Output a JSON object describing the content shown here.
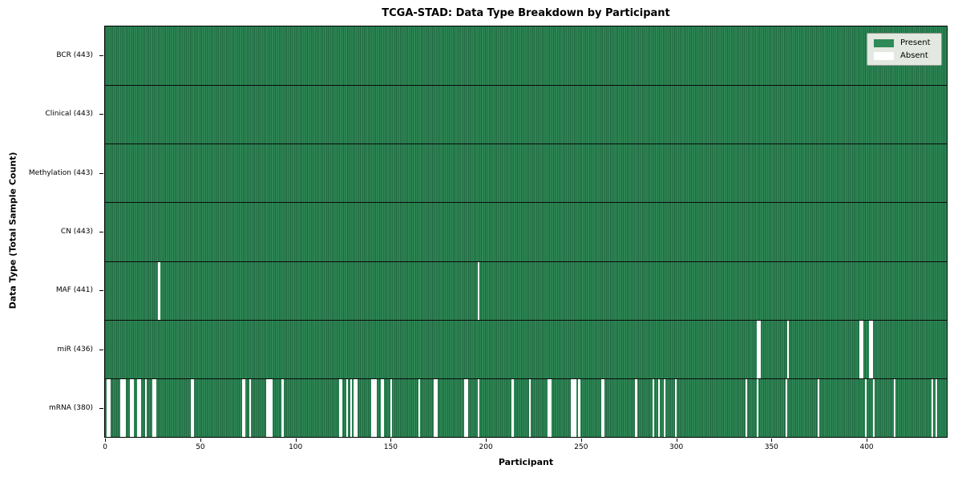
{
  "title": "TCGA-STAD: Data Type Breakdown by Participant",
  "legend": {
    "present_label": "Present",
    "absent_label": "Absent"
  },
  "colors": {
    "present": "#2e8b57",
    "absent": "#ffffff",
    "bar_edge": "#153c28",
    "row_divider": "#0a0a0a",
    "legend_bg": "#e3e8e0"
  },
  "chart_data": {
    "type": "heatmap",
    "title": "TCGA-STAD: Data Type Breakdown by Participant",
    "xlabel": "Participant",
    "ylabel": "Data Type (Total Sample Count)",
    "legend": [
      "Present",
      "Absent"
    ],
    "legend_position": "upper right",
    "n_participants": 443,
    "x_ticks": [
      0,
      50,
      100,
      150,
      200,
      250,
      300,
      350,
      400
    ],
    "xlim": [
      -0.5,
      442.5
    ],
    "rows": [
      {
        "name": "BCR",
        "label": "BCR (443)",
        "present_count": 443,
        "absent": []
      },
      {
        "name": "Clinical",
        "label": "Clinical (443)",
        "present_count": 443,
        "absent": []
      },
      {
        "name": "Methylation",
        "label": "Methylation (443)",
        "present_count": 443,
        "absent": []
      },
      {
        "name": "CN",
        "label": "CN (443)",
        "present_count": 443,
        "absent": []
      },
      {
        "name": "MAF",
        "label": "MAF (441)",
        "present_count": 441,
        "absent": [
          28,
          196
        ]
      },
      {
        "name": "miR",
        "label": "miR (436)",
        "present_count": 436,
        "absent": [
          343,
          344,
          359,
          397,
          398,
          402,
          403
        ]
      },
      {
        "name": "mRNA",
        "label": "mRNA (380)",
        "present_count": 380,
        "absent": [
          1,
          2,
          8,
          9,
          10,
          13,
          14,
          17,
          18,
          21,
          25,
          26,
          45,
          46,
          72,
          73,
          76,
          85,
          86,
          87,
          93,
          123,
          124,
          127,
          129,
          131,
          132,
          140,
          141,
          142,
          145,
          146,
          150,
          165,
          173,
          174,
          189,
          190,
          196,
          214,
          223,
          233,
          234,
          245,
          246,
          247,
          249,
          261,
          262,
          279,
          288,
          291,
          294,
          300,
          337,
          343,
          358,
          375,
          400,
          404,
          415,
          435,
          437
        ]
      }
    ]
  }
}
